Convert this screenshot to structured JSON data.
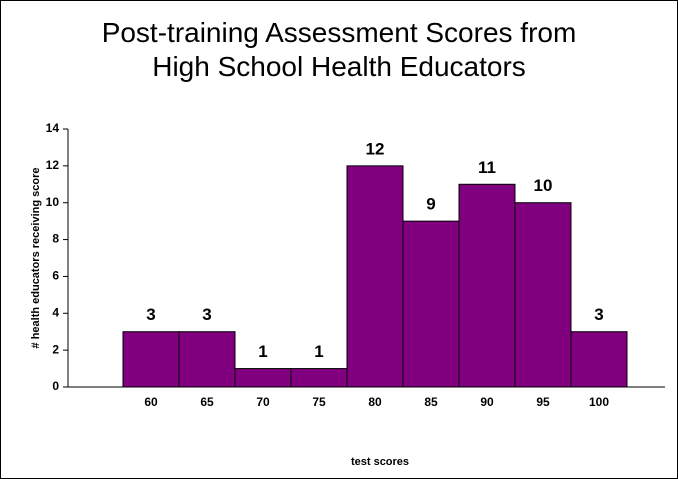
{
  "chart_data": {
    "type": "bar",
    "title": "Post-training Assessment Scores from High School Health Educators",
    "x_label": "test scores",
    "y_label": "# health educators receiving score",
    "categories": [
      "60",
      "65",
      "70",
      "75",
      "80",
      "85",
      "90",
      "95",
      "100"
    ],
    "values": [
      3,
      3,
      1,
      1,
      12,
      9,
      11,
      10,
      3
    ],
    "color": "#800080",
    "ylim": [
      0,
      14
    ],
    "yticks": [
      0,
      2,
      4,
      6,
      8,
      10,
      12,
      14
    ],
    "grid": false
  }
}
